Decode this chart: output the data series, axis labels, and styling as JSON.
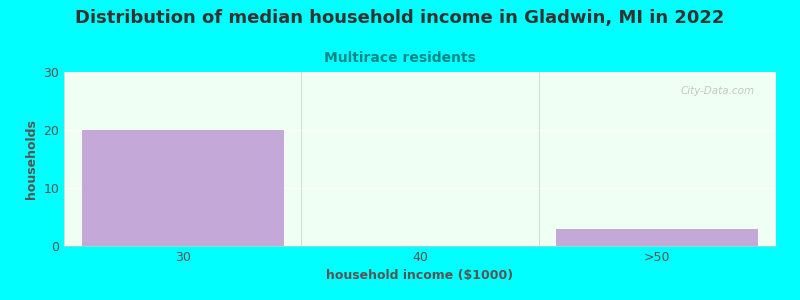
{
  "title": "Distribution of median household income in Gladwin, MI in 2022",
  "subtitle": "Multirace residents",
  "xlabel": "household income ($1000)",
  "ylabel": "households",
  "background_color": "#00FFFF",
  "plot_bg_color": "#f0fff4",
  "bar_color": "#C4A8D8",
  "tick_labels": [
    "30",
    "40",
    ">50"
  ],
  "values": [
    20,
    0,
    3
  ],
  "ylim": [
    0,
    30
  ],
  "yticks": [
    0,
    10,
    20,
    30
  ],
  "watermark": "City-Data.com",
  "title_fontsize": 13,
  "subtitle_fontsize": 10,
  "axis_label_fontsize": 9,
  "tick_fontsize": 9,
  "title_color": "#333333",
  "subtitle_color": "#008888",
  "axis_label_color": "#555555",
  "tick_color": "#555555"
}
